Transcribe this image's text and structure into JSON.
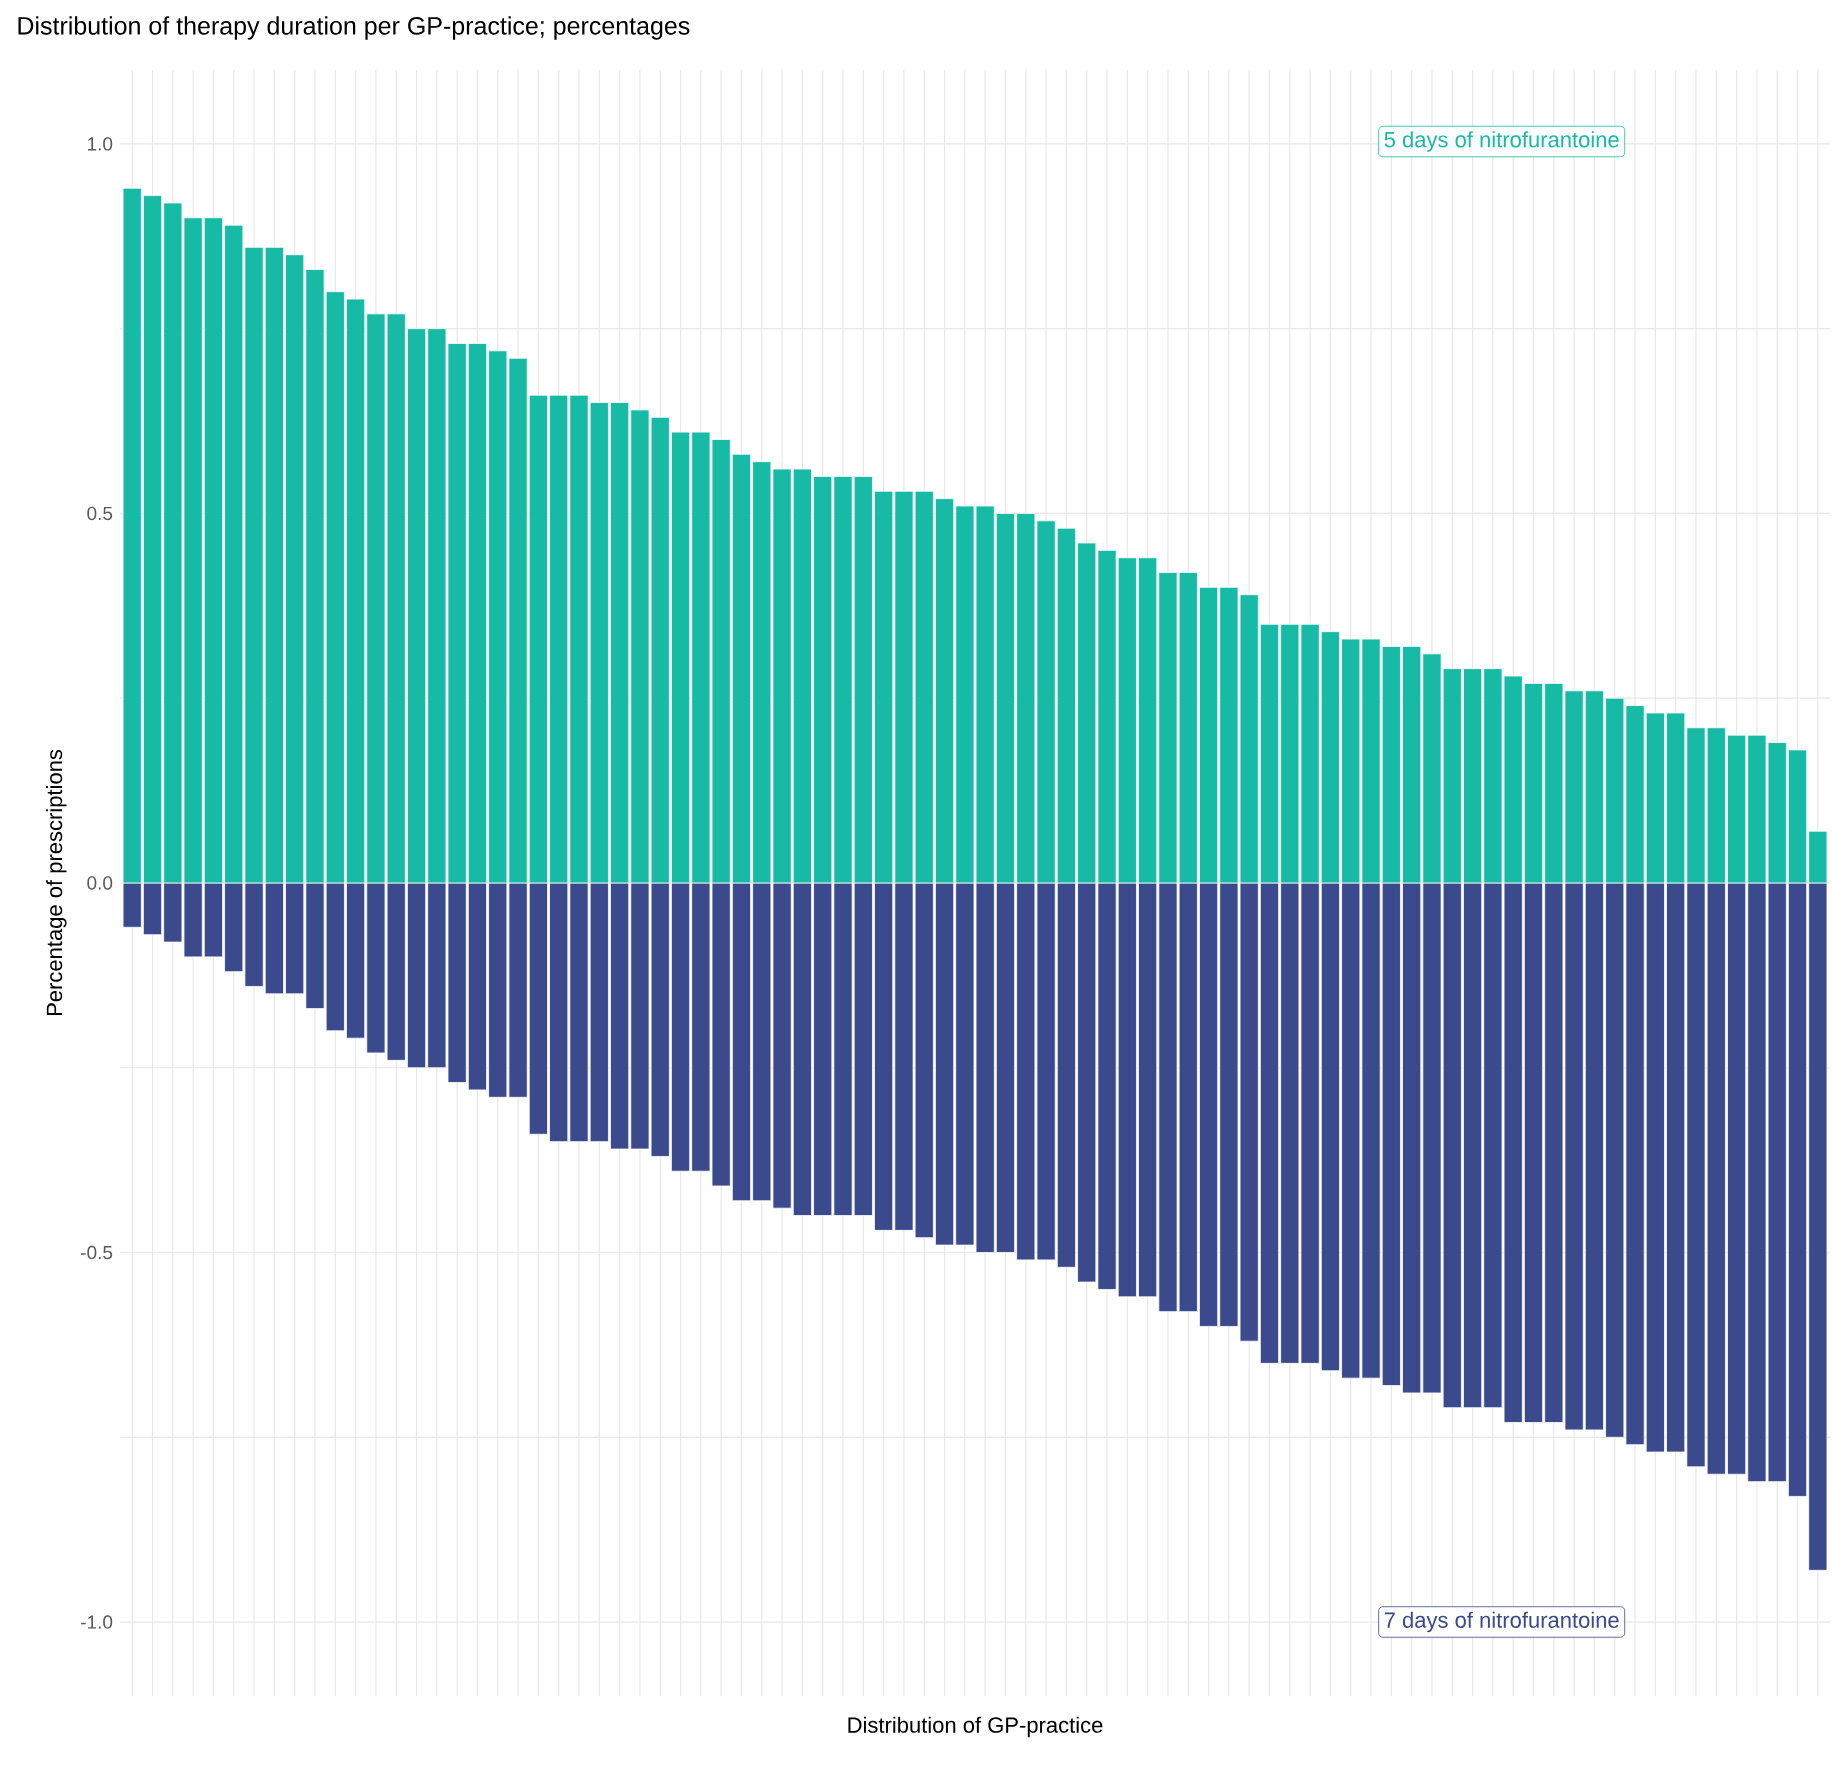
{
  "chart_data": {
    "type": "bar",
    "title": "Distribution of therapy duration per GP-practice; percentages",
    "xlabel": "Distribution of GP-practice",
    "ylabel": "Percentage of prescriptions",
    "categories": [
      null,
      null,
      null,
      null,
      null,
      null,
      null,
      null,
      null,
      null,
      null,
      null,
      null,
      null,
      null,
      null,
      null,
      null,
      null,
      null,
      null,
      null,
      null,
      null,
      null,
      null,
      null,
      null,
      null,
      null,
      null,
      null,
      null,
      null,
      null,
      null,
      null,
      null,
      null,
      null,
      null,
      null,
      null,
      null,
      null,
      null,
      null,
      null,
      null,
      null,
      null,
      null,
      null,
      null,
      null,
      null,
      null,
      null,
      null,
      null,
      null,
      null,
      null,
      null,
      null,
      null,
      null,
      null,
      null,
      null,
      null,
      null,
      null,
      null,
      null,
      null,
      null,
      null,
      null,
      null,
      null,
      null,
      null,
      null
    ],
    "series": [
      {
        "name": "5 days of nitrofurantoine",
        "color": "#16baa5",
        "values": [
          0.94,
          0.93,
          0.92,
          0.9,
          0.9,
          0.89,
          0.86,
          0.86,
          0.85,
          0.83,
          0.8,
          0.79,
          0.77,
          0.77,
          0.75,
          0.75,
          0.73,
          0.73,
          0.72,
          0.71,
          0.66,
          0.66,
          0.66,
          0.65,
          0.65,
          0.64,
          0.63,
          0.61,
          0.61,
          0.6,
          0.58,
          0.57,
          0.56,
          0.56,
          0.55,
          0.55,
          0.55,
          0.53,
          0.53,
          0.53,
          0.52,
          0.51,
          0.51,
          0.5,
          0.5,
          0.49,
          0.48,
          0.46,
          0.45,
          0.44,
          0.44,
          0.42,
          0.42,
          0.4,
          0.4,
          0.39,
          0.35,
          0.35,
          0.35,
          0.34,
          0.33,
          0.33,
          0.32,
          0.32,
          0.31,
          0.29,
          0.29,
          0.29,
          0.28,
          0.27,
          0.27,
          0.26,
          0.26,
          0.25,
          0.24,
          0.23,
          0.23,
          0.21,
          0.21,
          0.2,
          0.2,
          0.19,
          0.18,
          0.07
        ]
      },
      {
        "name": "7 days of nitrofurantoine",
        "color": "#3a4a8c",
        "values": [
          -0.06,
          -0.07,
          -0.08,
          -0.1,
          -0.1,
          -0.12,
          -0.14,
          -0.15,
          -0.15,
          -0.17,
          -0.2,
          -0.21,
          -0.23,
          -0.24,
          -0.25,
          -0.25,
          -0.27,
          -0.28,
          -0.29,
          -0.29,
          -0.34,
          -0.35,
          -0.35,
          -0.35,
          -0.36,
          -0.36,
          -0.37,
          -0.39,
          -0.39,
          -0.41,
          -0.43,
          -0.43,
          -0.44,
          -0.45,
          -0.45,
          -0.45,
          -0.45,
          -0.47,
          -0.47,
          -0.48,
          -0.49,
          -0.49,
          -0.5,
          -0.5,
          -0.51,
          -0.51,
          -0.52,
          -0.54,
          -0.55,
          -0.56,
          -0.56,
          -0.58,
          -0.58,
          -0.6,
          -0.6,
          -0.62,
          -0.65,
          -0.65,
          -0.65,
          -0.66,
          -0.67,
          -0.67,
          -0.68,
          -0.69,
          -0.69,
          -0.71,
          -0.71,
          -0.71,
          -0.73,
          -0.73,
          -0.73,
          -0.74,
          -0.74,
          -0.75,
          -0.76,
          -0.77,
          -0.77,
          -0.79,
          -0.8,
          -0.8,
          -0.81,
          -0.81,
          -0.83,
          -0.93
        ]
      }
    ],
    "ylim": [
      -1.1,
      1.1
    ],
    "yticks": [
      {
        "value": -1.0,
        "label": "-1.0"
      },
      {
        "value": -0.75,
        "label": null
      },
      -0.5,
      {
        "value": -0.25,
        "label": null
      },
      {
        "value": 0.0,
        "label": "0.0"
      },
      {
        "value": 0.25,
        "label": null
      },
      0.5,
      {
        "value": 0.75,
        "label": null
      },
      {
        "value": 1.0,
        "label": "1.0"
      }
    ],
    "grid": true,
    "stacked": true,
    "legend": "right"
  }
}
